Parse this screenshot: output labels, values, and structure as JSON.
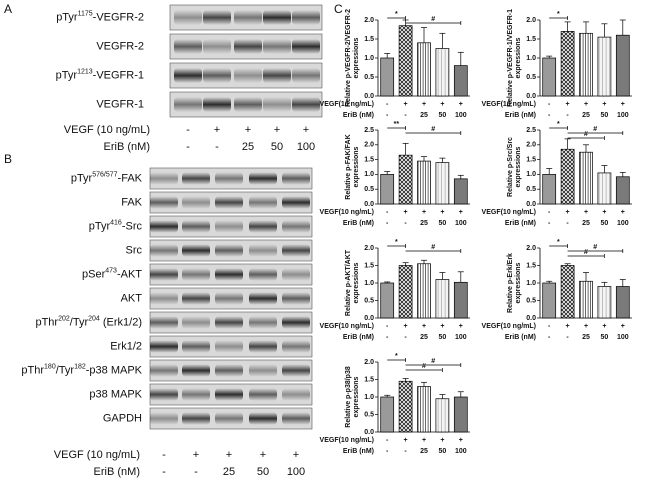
{
  "figure": {
    "A": {
      "letter": "A",
      "rows": [
        [
          "pTyr",
          "1175",
          "-VEGFR-2"
        ],
        [
          "VEGFR-2"
        ],
        [
          "pTyr",
          "1213",
          "-VEGFR-1"
        ],
        [
          "VEGFR-1"
        ]
      ],
      "treatments": [
        {
          "label": "VEGF (10 ng/mL)",
          "values": [
            "-",
            "+",
            "+",
            "+",
            "+"
          ]
        },
        {
          "label": "EriB (nM)",
          "values": [
            "-",
            "-",
            "25",
            "50",
            "100"
          ]
        }
      ]
    },
    "B": {
      "letter": "B",
      "rows": [
        [
          "pTyr",
          "576/577",
          "-FAK"
        ],
        [
          "FAK"
        ],
        [
          "pTyr",
          "416",
          "-Src"
        ],
        [
          "Src"
        ],
        [
          "pSer",
          "473",
          "-AKT"
        ],
        [
          "AKT"
        ],
        [
          "pThr",
          "202",
          "/Tyr",
          "204",
          " (Erk1/2)"
        ],
        [
          "Erk1/2"
        ],
        [
          "pThr",
          "180",
          "/Tyr",
          "182",
          "-p38 MAPK"
        ],
        [
          "p38 MAPK"
        ],
        [
          "GAPDH"
        ]
      ],
      "treatments": [
        {
          "label": "VEGF (10 ng/mL)",
          "values": [
            "-",
            "+",
            "+",
            "+",
            "+"
          ]
        },
        {
          "label": "EriB (nM)",
          "values": [
            "-",
            "-",
            "25",
            "50",
            "100"
          ]
        }
      ]
    },
    "C": {
      "letter": "C"
    }
  },
  "chart_data": [
    {
      "type": "bar",
      "ylabel": [
        "Relative p-VEGFR-2/VEGFR-2",
        "expressions"
      ],
      "values": [
        1.0,
        1.85,
        1.4,
        1.25,
        0.8
      ],
      "errors": [
        0.12,
        0.15,
        0.4,
        0.4,
        0.35
      ],
      "ylim": [
        0,
        2.0
      ],
      "yticks": [
        {
          "value": 0,
          "label": "0.0"
        },
        0.5,
        {
          "value": 1,
          "label": "1.0"
        },
        1.5,
        {
          "value": 2,
          "label": "2.0"
        }
      ],
      "significance": [
        "*",
        "#"
      ],
      "treatments": [
        {
          "label": "VEGF(10 ng/mL)",
          "values": [
            "-",
            "+",
            "+",
            "+",
            "+"
          ]
        },
        {
          "label": "EriB (nM)",
          "values": [
            "-",
            "-",
            "25",
            "50",
            "100"
          ]
        }
      ]
    },
    {
      "type": "bar",
      "ylabel": [
        "Relative p-VEGFR-1/VEGFR-1",
        "expressions"
      ],
      "values": [
        1.0,
        1.7,
        1.65,
        1.55,
        1.6
      ],
      "errors": [
        0.05,
        0.25,
        0.3,
        0.35,
        0.4
      ],
      "ylim": [
        0,
        2.0
      ],
      "yticks": [
        {
          "value": 0,
          "label": "0.0"
        },
        0.5,
        {
          "value": 1,
          "label": "1.0"
        },
        1.5,
        {
          "value": 2,
          "label": "2.0"
        }
      ],
      "significance": [
        "*"
      ],
      "treatments": [
        {
          "label": "VEGF(10 ng/mL)",
          "values": [
            "-",
            "+",
            "+",
            "+",
            "+"
          ]
        },
        {
          "label": "EriB (nM)",
          "values": [
            "-",
            "-",
            "25",
            "50",
            "100"
          ]
        }
      ]
    },
    {
      "type": "bar",
      "ylabel": [
        "Relative p-FAK/FAK",
        "expressions"
      ],
      "values": [
        1.0,
        1.65,
        1.45,
        1.4,
        0.85
      ],
      "errors": [
        0.1,
        0.4,
        0.15,
        0.15,
        0.12
      ],
      "ylim": [
        0,
        2.5
      ],
      "yticks": [
        {
          "value": 0,
          "label": "0.0"
        },
        0.5,
        {
          "value": 1,
          "label": "1.0"
        },
        1.5,
        {
          "value": 2,
          "label": "2.0"
        },
        2.5
      ],
      "significance": [
        "**",
        "#"
      ],
      "treatments": [
        {
          "label": "VEGF(10 ng/mL)",
          "values": [
            "-",
            "+",
            "+",
            "+",
            "+"
          ]
        },
        {
          "label": "EriB (nM)",
          "values": [
            "-",
            "-",
            "25",
            "50",
            "100"
          ]
        }
      ]
    },
    {
      "type": "bar",
      "ylabel": [
        "Relative p-Src/Src",
        "expressions"
      ],
      "values": [
        1.0,
        1.85,
        1.75,
        1.05,
        0.92
      ],
      "errors": [
        0.2,
        0.35,
        0.25,
        0.25,
        0.15
      ],
      "ylim": [
        0,
        2.5
      ],
      "yticks": [
        {
          "value": 0,
          "label": "0.0"
        },
        0.5,
        {
          "value": 1,
          "label": "1.0"
        },
        1.5,
        {
          "value": 2,
          "label": "2.0"
        },
        2.5
      ],
      "significance": [
        "*",
        "#",
        "#"
      ],
      "treatments": [
        {
          "label": "VEGF(10 ng/mL)",
          "values": [
            "-",
            "+",
            "+",
            "+",
            "+"
          ]
        },
        {
          "label": "EriB (nM)",
          "values": [
            "-",
            "-",
            "25",
            "50",
            "100"
          ]
        }
      ]
    },
    {
      "type": "bar",
      "ylabel": [
        "Relative p-AKT/AKT",
        "expressions"
      ],
      "values": [
        1.0,
        1.5,
        1.55,
        1.1,
        1.02
      ],
      "errors": [
        0.03,
        0.08,
        0.1,
        0.2,
        0.3
      ],
      "ylim": [
        0,
        2.0
      ],
      "yticks": [
        {
          "value": 0,
          "label": "0.0"
        },
        0.5,
        {
          "value": 1,
          "label": "1.0"
        },
        1.5,
        {
          "value": 2,
          "label": "2.0"
        }
      ],
      "significance": [
        "*",
        "#"
      ],
      "treatments": [
        {
          "label": "VEGF(10 ng/mL)",
          "values": [
            "-",
            "+",
            "+",
            "+",
            "+"
          ]
        },
        {
          "label": "EriB (nM)",
          "values": [
            "-",
            "-",
            "25",
            "50",
            "100"
          ]
        }
      ]
    },
    {
      "type": "bar",
      "ylabel": [
        "Relative p-Erk/Erk",
        "expressions"
      ],
      "values": [
        1.0,
        1.5,
        1.05,
        0.9,
        0.9
      ],
      "errors": [
        0.05,
        0.05,
        0.25,
        0.12,
        0.2
      ],
      "ylim": [
        0,
        2.0
      ],
      "yticks": [
        {
          "value": 0,
          "label": "0.0"
        },
        0.5,
        {
          "value": 1,
          "label": "1.0"
        },
        1.5,
        {
          "value": 2,
          "label": "2.0"
        }
      ],
      "significance": [
        "*",
        "#",
        "#"
      ],
      "treatments": [
        {
          "label": "VEGF(10 ng/mL)",
          "values": [
            "-",
            "+",
            "+",
            "+",
            "+"
          ]
        },
        {
          "label": "EriB (nM)",
          "values": [
            "-",
            "-",
            "25",
            "50",
            "100"
          ]
        }
      ]
    },
    {
      "type": "bar",
      "ylabel": [
        "Relative p-p38/p38",
        "expressions"
      ],
      "values": [
        1.0,
        1.45,
        1.3,
        0.95,
        1.0
      ],
      "errors": [
        0.05,
        0.08,
        0.12,
        0.12,
        0.15
      ],
      "ylim": [
        0,
        2.0
      ],
      "yticks": [
        {
          "value": 0,
          "label": "0.0"
        },
        0.5,
        {
          "value": 1,
          "label": "1.0"
        },
        1.5,
        {
          "value": 2,
          "label": "2.0"
        }
      ],
      "significance": [
        "*",
        "#",
        "#"
      ],
      "treatments": [
        {
          "label": "VEGF(10 ng/mL)",
          "values": [
            "-",
            "+",
            "+",
            "+",
            "+"
          ]
        },
        {
          "label": "EriB (nM)",
          "values": [
            "-",
            "-",
            "25",
            "50",
            "100"
          ]
        }
      ]
    }
  ]
}
